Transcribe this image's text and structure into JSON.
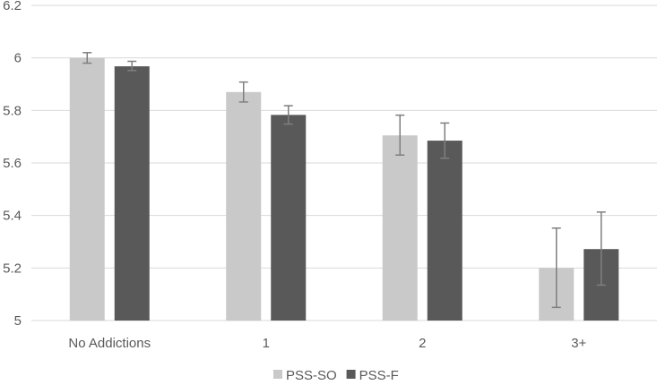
{
  "chart_data": {
    "type": "bar",
    "categories": [
      "No Addictions",
      "1",
      "2",
      "3+"
    ],
    "series": [
      {
        "name": "PSS-SO",
        "color": "#c9c9c9",
        "values": [
          6.0,
          5.87,
          5.705,
          5.2
        ],
        "error_low": [
          5.98,
          5.832,
          5.63,
          5.05
        ],
        "error_high": [
          6.02,
          5.908,
          5.782,
          5.352
        ]
      },
      {
        "name": "PSS-F",
        "color": "#595959",
        "values": [
          5.968,
          5.783,
          5.685,
          5.272
        ],
        "error_low": [
          5.952,
          5.748,
          5.618,
          5.135
        ],
        "error_high": [
          5.987,
          5.818,
          5.752,
          5.413
        ]
      }
    ],
    "ylim": [
      5.0,
      6.2
    ],
    "yticks": [
      "5",
      "5.2",
      "5.4",
      "5.6",
      "5.8",
      "6",
      "6.2"
    ],
    "grid": true,
    "legend_position": "bottom",
    "title": "",
    "xlabel": "",
    "ylabel": ""
  }
}
